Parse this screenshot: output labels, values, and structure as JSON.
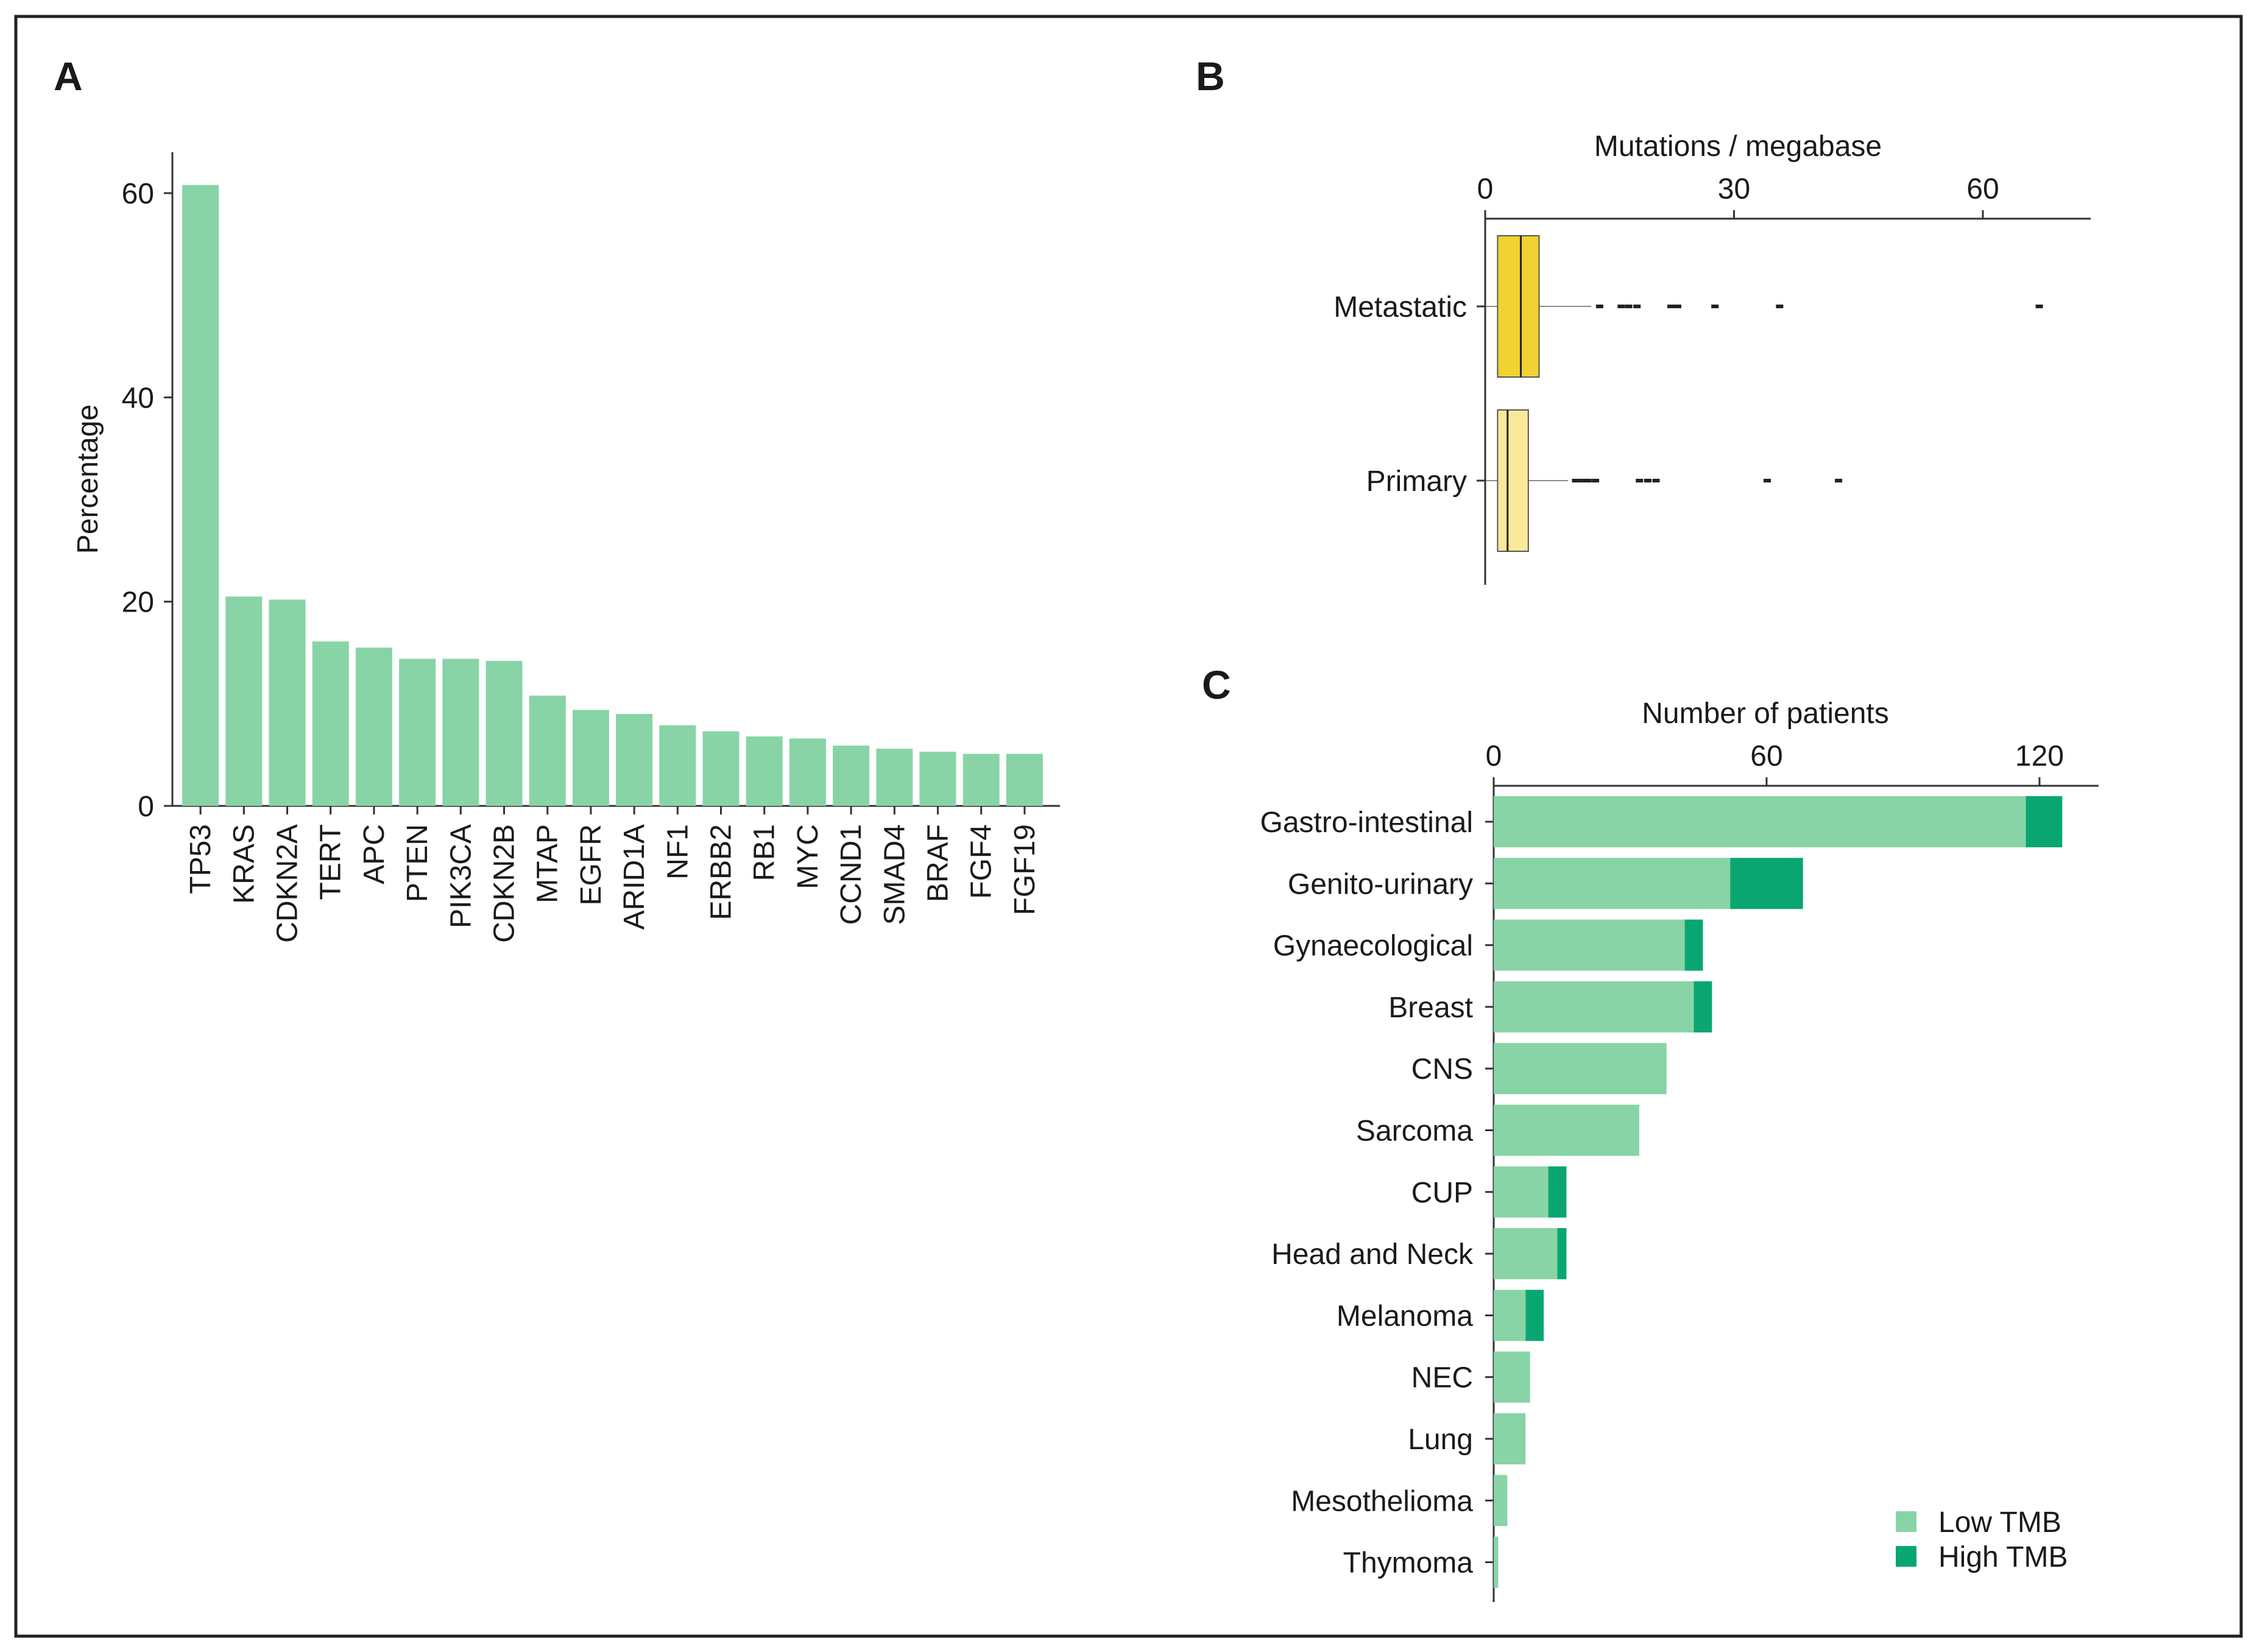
{
  "panels": {
    "a": "A",
    "b": "B",
    "c": "C"
  },
  "chart_data": [
    {
      "type": "bar",
      "panel": "A",
      "title": "",
      "xlabel": "",
      "ylabel": "Percentage",
      "ylim": [
        0,
        64
      ],
      "yticks": [
        0,
        20,
        40,
        60
      ],
      "categories": [
        "TP53",
        "KRAS",
        "CDKN2A",
        "TERT",
        "APC",
        "PTEN",
        "PIK3CA",
        "CDKN2B",
        "MTAP",
        "EGFR",
        "ARID1A",
        "NF1",
        "ERBB2",
        "RB1",
        "MYC",
        "CCND1",
        "SMAD4",
        "BRAF",
        "FGF4",
        "FGF19"
      ],
      "values": [
        60.8,
        20.5,
        20.2,
        16.1,
        15.5,
        14.4,
        14.4,
        14.2,
        10.8,
        9.4,
        9.0,
        7.9,
        7.3,
        6.8,
        6.6,
        5.9,
        5.6,
        5.3,
        5.1,
        5.1
      ],
      "color": "#88d4a6"
    },
    {
      "type": "box",
      "panel": "B",
      "orientation": "horizontal",
      "title": "",
      "xlabel": "Mutations / megabase",
      "xlim": [
        0,
        73
      ],
      "xticks": [
        0,
        30,
        60
      ],
      "xaxis_position": "top",
      "groups": [
        {
          "name": "Metastatic",
          "q1": 1.5,
          "median": 4.3,
          "q3": 6.5,
          "whisker_low": 0.1,
          "whisker_high": 12.8,
          "outliers": [
            13.8,
            16.4,
            17.3,
            18.3,
            22.4,
            23.2,
            27.7,
            35.5,
            66.8
          ],
          "color": "#f0d230"
        },
        {
          "name": "Primary",
          "q1": 1.5,
          "median": 2.7,
          "q3": 5.2,
          "whisker_low": 0.1,
          "whisker_high": 10.0,
          "outliers": [
            10.9,
            11.6,
            12.4,
            13.3,
            18.6,
            19.6,
            20.6,
            34.0,
            42.6
          ],
          "color": "#fbe99a"
        }
      ]
    },
    {
      "type": "bar",
      "panel": "C",
      "orientation": "horizontal",
      "stacked": true,
      "title": "",
      "xlabel": "Number of patients",
      "xlim": [
        0,
        133
      ],
      "xticks": [
        0,
        60,
        120
      ],
      "xaxis_position": "top",
      "legend_position": "bottom-right",
      "categories": [
        "Gastro-intestinal",
        "Genito-urinary",
        "Gynaecological",
        "Breast",
        "CNS",
        "Sarcoma",
        "CUP",
        "Head and Neck",
        "Melanoma",
        "NEC",
        "Lung",
        "Mesothelioma",
        "Thymoma"
      ],
      "series": [
        {
          "name": "Low TMB",
          "color": "#88d4a6",
          "values": [
            117,
            52,
            42,
            44,
            38,
            32,
            12,
            14,
            7,
            8,
            7,
            3,
            1
          ]
        },
        {
          "name": "High TMB",
          "color": "#0aa672",
          "values": [
            8,
            16,
            4,
            4,
            0,
            0,
            4,
            2,
            4,
            0,
            0,
            0,
            0
          ]
        }
      ]
    }
  ]
}
